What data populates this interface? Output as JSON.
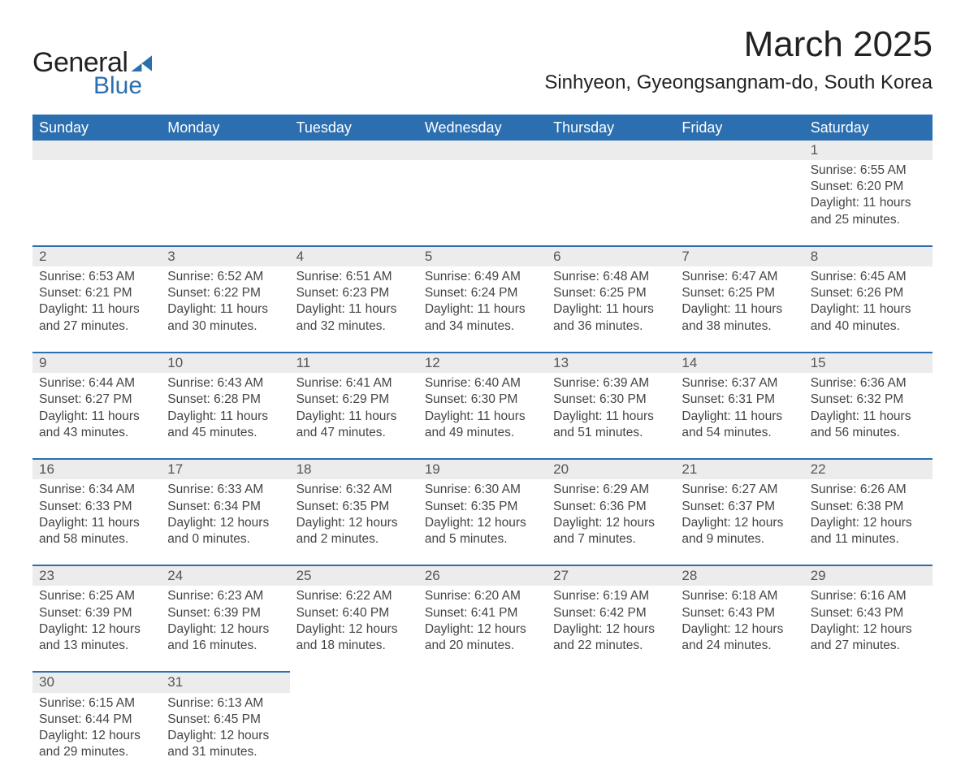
{
  "logo": {
    "general": "General",
    "blue": "Blue"
  },
  "header": {
    "month_title": "March 2025",
    "location": "Sinhyeon, Gyeongsangnam-do, South Korea"
  },
  "colors": {
    "header_bg": "#2b6fb0",
    "header_text": "#ffffff",
    "row_separator": "#2b6fb0",
    "daynum_bg": "#ececec",
    "body_text": "#444444",
    "page_bg": "#ffffff"
  },
  "calendar": {
    "type": "table",
    "columns": [
      "Sunday",
      "Monday",
      "Tuesday",
      "Wednesday",
      "Thursday",
      "Friday",
      "Saturday"
    ],
    "weeks": [
      [
        null,
        null,
        null,
        null,
        null,
        null,
        {
          "day": "1",
          "sunrise": "Sunrise: 6:55 AM",
          "sunset": "Sunset: 6:20 PM",
          "daylight1": "Daylight: 11 hours",
          "daylight2": "and 25 minutes."
        }
      ],
      [
        {
          "day": "2",
          "sunrise": "Sunrise: 6:53 AM",
          "sunset": "Sunset: 6:21 PM",
          "daylight1": "Daylight: 11 hours",
          "daylight2": "and 27 minutes."
        },
        {
          "day": "3",
          "sunrise": "Sunrise: 6:52 AM",
          "sunset": "Sunset: 6:22 PM",
          "daylight1": "Daylight: 11 hours",
          "daylight2": "and 30 minutes."
        },
        {
          "day": "4",
          "sunrise": "Sunrise: 6:51 AM",
          "sunset": "Sunset: 6:23 PM",
          "daylight1": "Daylight: 11 hours",
          "daylight2": "and 32 minutes."
        },
        {
          "day": "5",
          "sunrise": "Sunrise: 6:49 AM",
          "sunset": "Sunset: 6:24 PM",
          "daylight1": "Daylight: 11 hours",
          "daylight2": "and 34 minutes."
        },
        {
          "day": "6",
          "sunrise": "Sunrise: 6:48 AM",
          "sunset": "Sunset: 6:25 PM",
          "daylight1": "Daylight: 11 hours",
          "daylight2": "and 36 minutes."
        },
        {
          "day": "7",
          "sunrise": "Sunrise: 6:47 AM",
          "sunset": "Sunset: 6:25 PM",
          "daylight1": "Daylight: 11 hours",
          "daylight2": "and 38 minutes."
        },
        {
          "day": "8",
          "sunrise": "Sunrise: 6:45 AM",
          "sunset": "Sunset: 6:26 PM",
          "daylight1": "Daylight: 11 hours",
          "daylight2": "and 40 minutes."
        }
      ],
      [
        {
          "day": "9",
          "sunrise": "Sunrise: 6:44 AM",
          "sunset": "Sunset: 6:27 PM",
          "daylight1": "Daylight: 11 hours",
          "daylight2": "and 43 minutes."
        },
        {
          "day": "10",
          "sunrise": "Sunrise: 6:43 AM",
          "sunset": "Sunset: 6:28 PM",
          "daylight1": "Daylight: 11 hours",
          "daylight2": "and 45 minutes."
        },
        {
          "day": "11",
          "sunrise": "Sunrise: 6:41 AM",
          "sunset": "Sunset: 6:29 PM",
          "daylight1": "Daylight: 11 hours",
          "daylight2": "and 47 minutes."
        },
        {
          "day": "12",
          "sunrise": "Sunrise: 6:40 AM",
          "sunset": "Sunset: 6:30 PM",
          "daylight1": "Daylight: 11 hours",
          "daylight2": "and 49 minutes."
        },
        {
          "day": "13",
          "sunrise": "Sunrise: 6:39 AM",
          "sunset": "Sunset: 6:30 PM",
          "daylight1": "Daylight: 11 hours",
          "daylight2": "and 51 minutes."
        },
        {
          "day": "14",
          "sunrise": "Sunrise: 6:37 AM",
          "sunset": "Sunset: 6:31 PM",
          "daylight1": "Daylight: 11 hours",
          "daylight2": "and 54 minutes."
        },
        {
          "day": "15",
          "sunrise": "Sunrise: 6:36 AM",
          "sunset": "Sunset: 6:32 PM",
          "daylight1": "Daylight: 11 hours",
          "daylight2": "and 56 minutes."
        }
      ],
      [
        {
          "day": "16",
          "sunrise": "Sunrise: 6:34 AM",
          "sunset": "Sunset: 6:33 PM",
          "daylight1": "Daylight: 11 hours",
          "daylight2": "and 58 minutes."
        },
        {
          "day": "17",
          "sunrise": "Sunrise: 6:33 AM",
          "sunset": "Sunset: 6:34 PM",
          "daylight1": "Daylight: 12 hours",
          "daylight2": "and 0 minutes."
        },
        {
          "day": "18",
          "sunrise": "Sunrise: 6:32 AM",
          "sunset": "Sunset: 6:35 PM",
          "daylight1": "Daylight: 12 hours",
          "daylight2": "and 2 minutes."
        },
        {
          "day": "19",
          "sunrise": "Sunrise: 6:30 AM",
          "sunset": "Sunset: 6:35 PM",
          "daylight1": "Daylight: 12 hours",
          "daylight2": "and 5 minutes."
        },
        {
          "day": "20",
          "sunrise": "Sunrise: 6:29 AM",
          "sunset": "Sunset: 6:36 PM",
          "daylight1": "Daylight: 12 hours",
          "daylight2": "and 7 minutes."
        },
        {
          "day": "21",
          "sunrise": "Sunrise: 6:27 AM",
          "sunset": "Sunset: 6:37 PM",
          "daylight1": "Daylight: 12 hours",
          "daylight2": "and 9 minutes."
        },
        {
          "day": "22",
          "sunrise": "Sunrise: 6:26 AM",
          "sunset": "Sunset: 6:38 PM",
          "daylight1": "Daylight: 12 hours",
          "daylight2": "and 11 minutes."
        }
      ],
      [
        {
          "day": "23",
          "sunrise": "Sunrise: 6:25 AM",
          "sunset": "Sunset: 6:39 PM",
          "daylight1": "Daylight: 12 hours",
          "daylight2": "and 13 minutes."
        },
        {
          "day": "24",
          "sunrise": "Sunrise: 6:23 AM",
          "sunset": "Sunset: 6:39 PM",
          "daylight1": "Daylight: 12 hours",
          "daylight2": "and 16 minutes."
        },
        {
          "day": "25",
          "sunrise": "Sunrise: 6:22 AM",
          "sunset": "Sunset: 6:40 PM",
          "daylight1": "Daylight: 12 hours",
          "daylight2": "and 18 minutes."
        },
        {
          "day": "26",
          "sunrise": "Sunrise: 6:20 AM",
          "sunset": "Sunset: 6:41 PM",
          "daylight1": "Daylight: 12 hours",
          "daylight2": "and 20 minutes."
        },
        {
          "day": "27",
          "sunrise": "Sunrise: 6:19 AM",
          "sunset": "Sunset: 6:42 PM",
          "daylight1": "Daylight: 12 hours",
          "daylight2": "and 22 minutes."
        },
        {
          "day": "28",
          "sunrise": "Sunrise: 6:18 AM",
          "sunset": "Sunset: 6:43 PM",
          "daylight1": "Daylight: 12 hours",
          "daylight2": "and 24 minutes."
        },
        {
          "day": "29",
          "sunrise": "Sunrise: 6:16 AM",
          "sunset": "Sunset: 6:43 PM",
          "daylight1": "Daylight: 12 hours",
          "daylight2": "and 27 minutes."
        }
      ],
      [
        {
          "day": "30",
          "sunrise": "Sunrise: 6:15 AM",
          "sunset": "Sunset: 6:44 PM",
          "daylight1": "Daylight: 12 hours",
          "daylight2": "and 29 minutes."
        },
        {
          "day": "31",
          "sunrise": "Sunrise: 6:13 AM",
          "sunset": "Sunset: 6:45 PM",
          "daylight1": "Daylight: 12 hours",
          "daylight2": "and 31 minutes."
        },
        null,
        null,
        null,
        null,
        null
      ]
    ]
  }
}
